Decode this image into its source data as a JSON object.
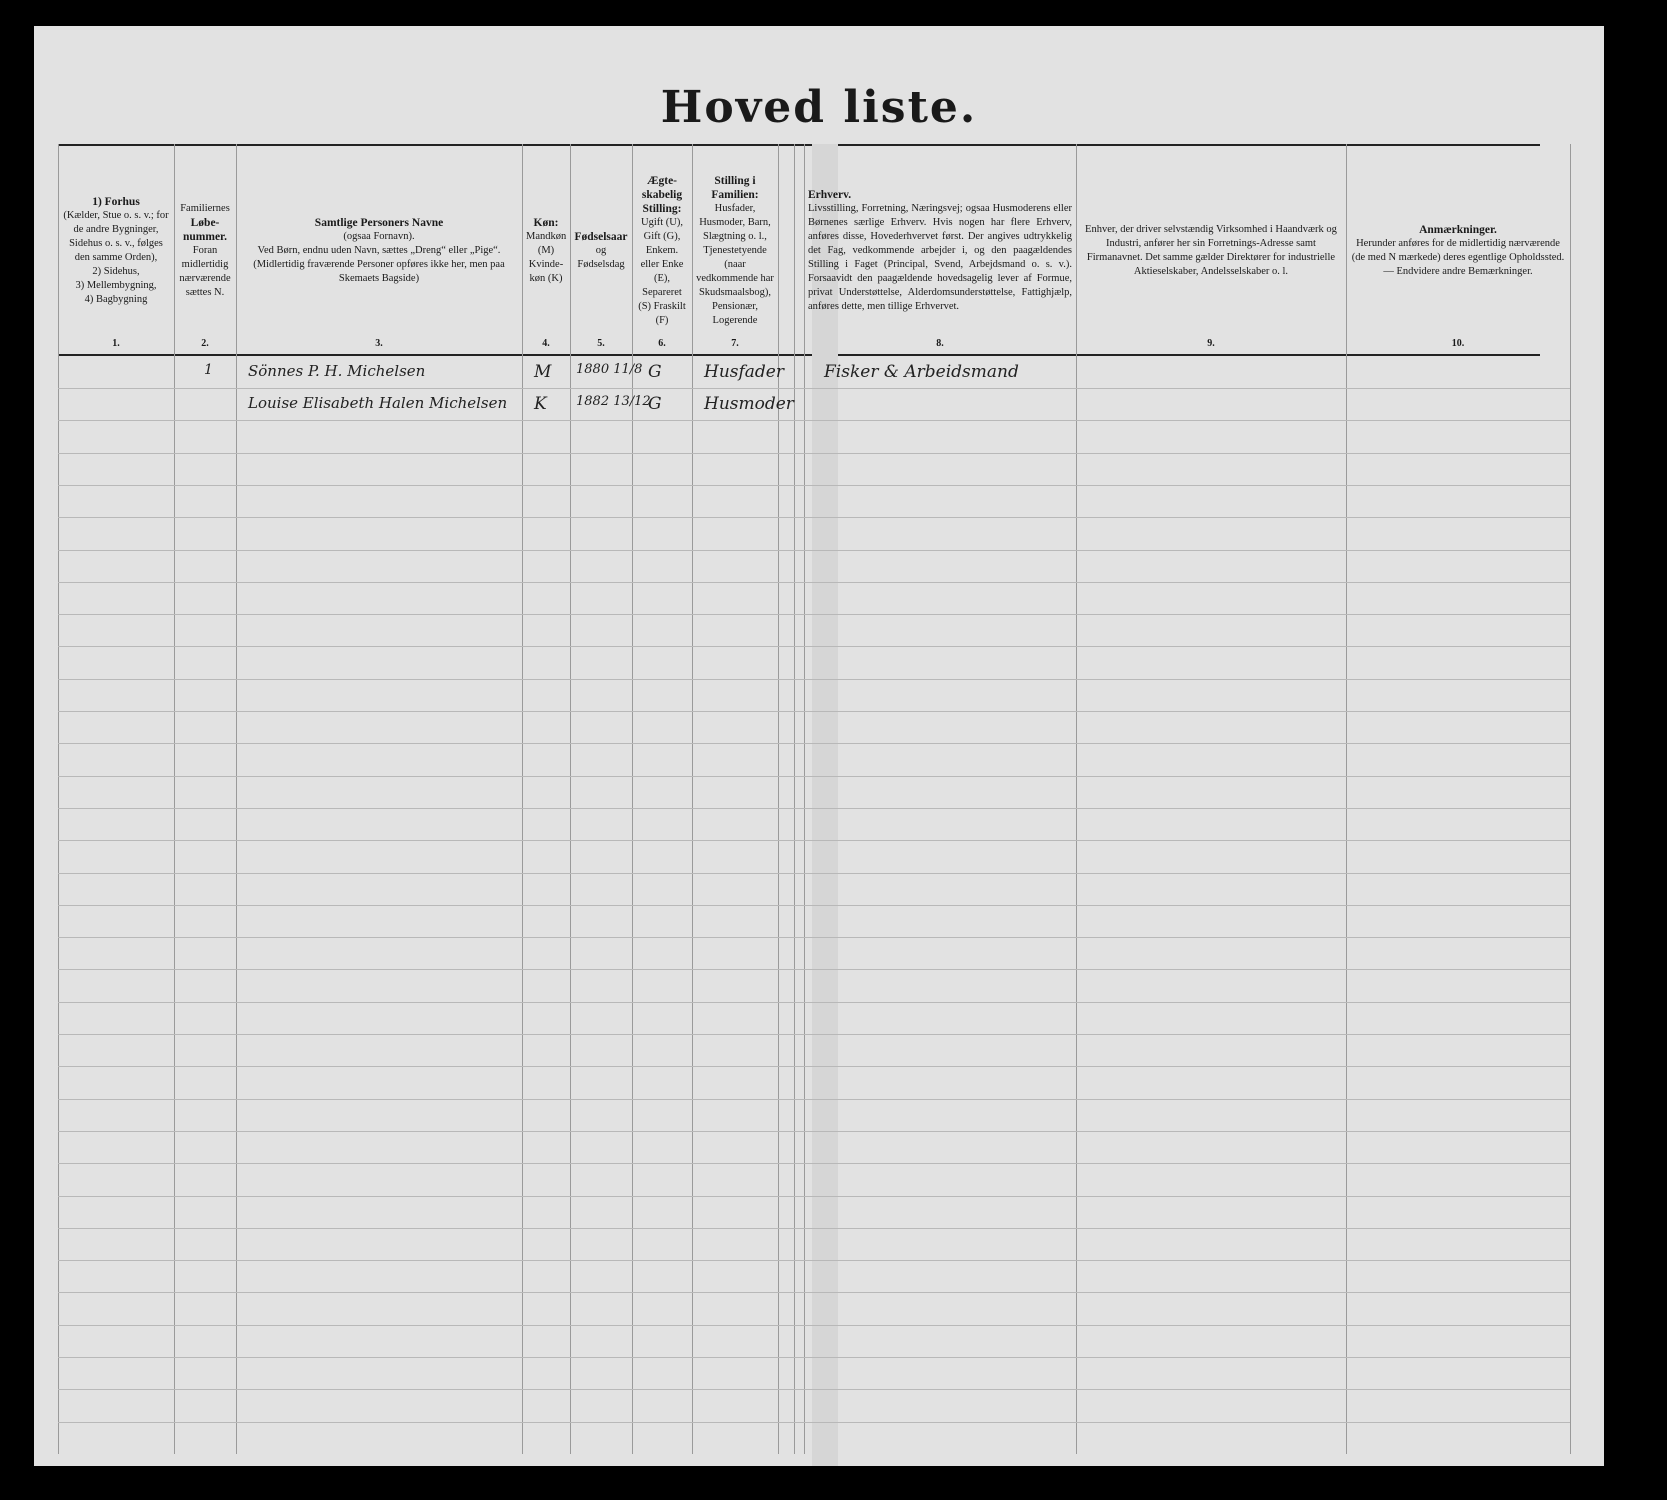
{
  "title": "Hoved liste.",
  "columns": [
    {
      "num": "1.",
      "heading": "1) Forhus",
      "text": "(Kælder, Stue o. s. v.; for de andre Bygninger, Sidehus o. s. v., følges den samme Orden),",
      "extra": [
        "2) Sidehus,",
        "3) Mellembygning,",
        "4) Bagbygning"
      ]
    },
    {
      "num": "2.",
      "pre": "Familiernes",
      "heading": "Løbe-nummer.",
      "text": "Foran midlertidig nærværende sættes N."
    },
    {
      "num": "3.",
      "heading": "Samtlige Personers Navne",
      "text": "(ogsaa Fornavn).",
      "extra": [
        "Ved Børn, endnu uden Navn, sættes „Dreng“ eller „Pige“.",
        "(Midlertidig fraværende Personer opføres ikke her, men paa Skemaets Bagside)"
      ]
    },
    {
      "num": "4.",
      "heading": "Køn:",
      "text": "Mandkøn (M) Kvinde-køn (K)"
    },
    {
      "num": "5.",
      "heading": "Fødselsaar",
      "text": "og",
      "extra": [
        "Fødselsdag"
      ]
    },
    {
      "num": "6.",
      "heading": "Ægte-skabelig Stilling:",
      "text": "Ugift (U), Gift (G), Enkem. eller Enke (E), Separeret (S) Fraskilt (F)"
    },
    {
      "num": "7.",
      "heading": "Stilling i Familien:",
      "text": "Husfader, Husmoder, Barn, Slægtning o. l., Tjenestetyende (naar vedkommende har Skudsmaalsbog), Pensionær, Logerende"
    },
    {
      "num": "8.",
      "heading": "Erhverv.",
      "text": "Livsstilling, Forretning, Næringsvej; ogsaa Husmoderens eller Børnenes særlige Erhverv. Hvis nogen har flere Erhverv, anføres disse, Hovederhvervet først. Der angives udtrykkelig det Fag, vedkommende arbejder i, og den paagældendes Stilling i Faget (Principal, Svend, Arbejdsmand o. s. v.). Forsaavidt den paagældende hovedsagelig lever af Formue, privat Understøttelse, Alderdomsunderstøttelse, Fattighjælp, anføres dette, men tillige Erhvervet."
    },
    {
      "num": "9.",
      "heading": "",
      "text": "Enhver, der driver selvstændig Virksomhed i Haandværk og Industri, anfører her sin Forretnings-Adresse samt Firmanavnet. Det samme gælder Direktører for industrielle Aktieselskaber, Andelsselskaber o. l."
    },
    {
      "num": "10.",
      "heading": "Anmærkninger.",
      "text": "Herunder anføres for de midlertidig nærværende (de med N mærkede) deres egentlige Opholdssted. — Endvidere andre Bemærkninger."
    }
  ],
  "entries": [
    {
      "family_no": "1",
      "name": "Sönnes P. H. Michelsen",
      "sex": "M",
      "birth": "1880 11/8",
      "marital": "G",
      "position": "Husfader",
      "occupation": "Fisker & Arbeidsmand"
    },
    {
      "family_no": "",
      "name": "Louise Elisabeth Halen Michelsen",
      "sex": "K",
      "birth": "1882 13/12",
      "marital": "G",
      "position": "Husmoder",
      "occupation": ""
    }
  ]
}
